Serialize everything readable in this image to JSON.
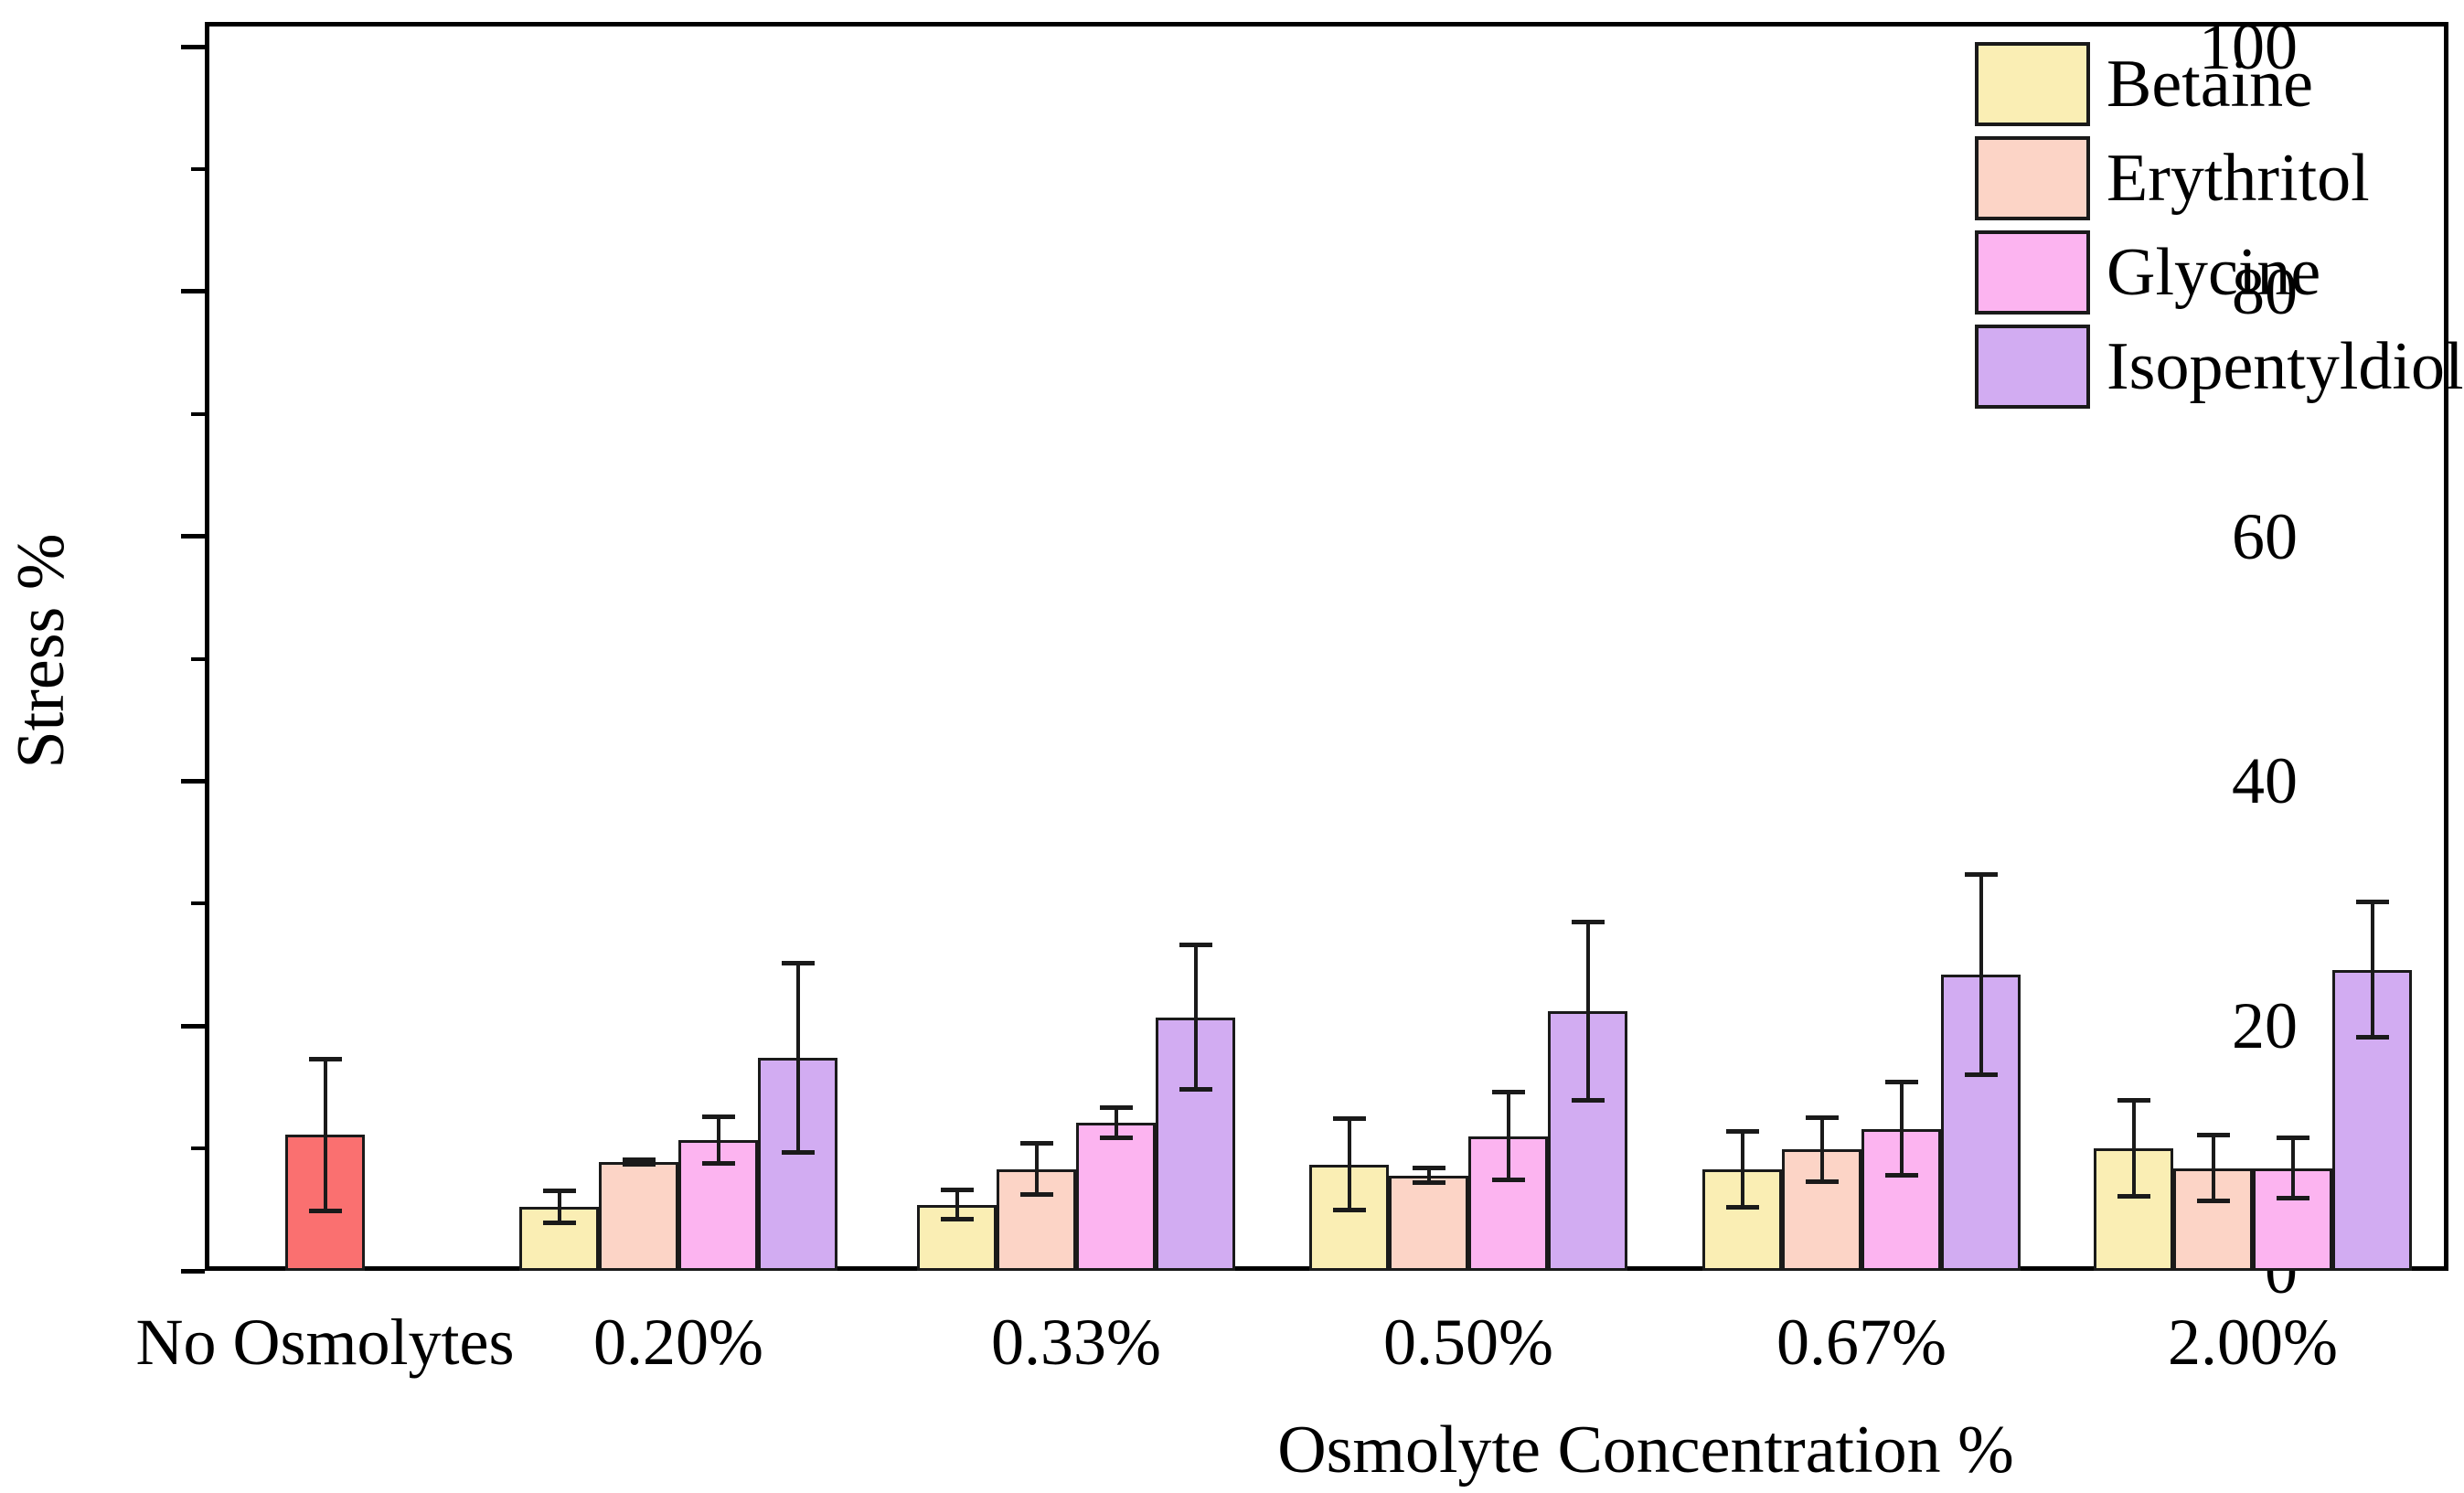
{
  "figure": {
    "background": "#ffffff",
    "frame_color": "#000000"
  },
  "chart_data": {
    "type": "bar",
    "title": "",
    "xlabel": "Osmolyte Concentration %",
    "ylabel": "Stress %",
    "ylim": [
      0,
      100
    ],
    "grid": false,
    "legend_position": "top-right-inside",
    "y_major_ticks": [
      0,
      20,
      40,
      60,
      80,
      100
    ],
    "y_minor_ticks": [
      10,
      30,
      50,
      70,
      90
    ],
    "baseline_category": {
      "label": "No Osmolytes",
      "value": 11.1,
      "error": 6.2,
      "color": "#FA7070"
    },
    "categories": [
      "0.20%",
      "0.33%",
      "0.50%",
      "0.67%",
      "2.00%"
    ],
    "series": [
      {
        "name": "Betaine",
        "color": "#FAEEB4",
        "values": [
          5.2,
          5.4,
          8.7,
          8.3,
          10.0
        ],
        "errors": [
          1.3,
          1.2,
          3.7,
          3.1,
          3.9
        ]
      },
      {
        "name": "Erythritol",
        "color": "#FCD4C6",
        "values": [
          8.9,
          8.3,
          7.8,
          9.9,
          8.4
        ],
        "errors": [
          0.2,
          2.1,
          0.6,
          2.6,
          2.7
        ]
      },
      {
        "name": "Glycine",
        "color": "#FCB4F0",
        "values": [
          10.7,
          12.1,
          11.0,
          11.6,
          8.4
        ],
        "errors": [
          1.9,
          1.2,
          3.6,
          3.8,
          2.5
        ]
      },
      {
        "name": "Isopentyldiol",
        "color": "#D2ACF2",
        "values": [
          17.4,
          20.7,
          21.2,
          24.2,
          24.6
        ],
        "errors": [
          7.7,
          5.9,
          7.3,
          8.2,
          5.5
        ]
      }
    ]
  }
}
